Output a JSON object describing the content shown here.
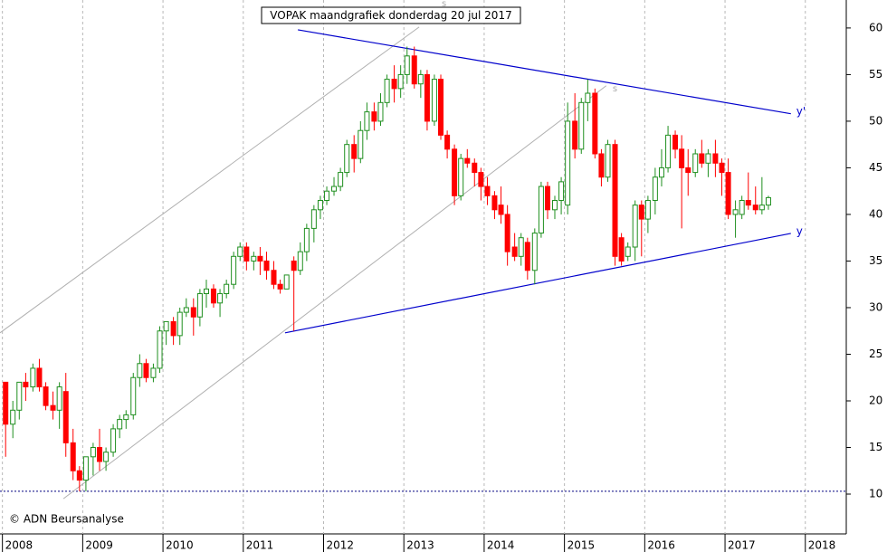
{
  "chart_data": {
    "type": "candlestick",
    "title": "VOPAK maandgrafiek donderdag 20 jul 2017",
    "copyright": "© ADN Beursanalyse",
    "x": [
      2008.04,
      2008.13,
      2008.21,
      2008.29,
      2008.38,
      2008.46,
      2008.54,
      2008.63,
      2008.71,
      2008.79,
      2008.88,
      2008.96,
      2009.04,
      2009.13,
      2009.21,
      2009.29,
      2009.38,
      2009.46,
      2009.54,
      2009.63,
      2009.71,
      2009.79,
      2009.88,
      2009.96,
      2010.04,
      2010.13,
      2010.21,
      2010.29,
      2010.38,
      2010.46,
      2010.54,
      2010.63,
      2010.71,
      2010.79,
      2010.88,
      2010.96,
      2011.04,
      2011.13,
      2011.21,
      2011.29,
      2011.38,
      2011.46,
      2011.54,
      2011.63,
      2011.71,
      2011.79,
      2011.88,
      2011.96,
      2012.04,
      2012.13,
      2012.21,
      2012.29,
      2012.38,
      2012.46,
      2012.54,
      2012.63,
      2012.71,
      2012.79,
      2012.88,
      2012.96,
      2013.04,
      2013.13,
      2013.21,
      2013.29,
      2013.38,
      2013.46,
      2013.54,
      2013.63,
      2013.71,
      2013.79,
      2013.88,
      2013.96,
      2014.04,
      2014.13,
      2014.21,
      2014.29,
      2014.38,
      2014.46,
      2014.54,
      2014.63,
      2014.71,
      2014.79,
      2014.88,
      2014.96,
      2015.04,
      2015.13,
      2015.21,
      2015.29,
      2015.38,
      2015.46,
      2015.54,
      2015.63,
      2015.71,
      2015.79,
      2015.88,
      2015.96,
      2016.04,
      2016.13,
      2016.21,
      2016.29,
      2016.38,
      2016.46,
      2016.54,
      2016.63,
      2016.71,
      2016.79,
      2016.88,
      2016.96,
      2017.04,
      2017.13,
      2017.21,
      2017.29,
      2017.38,
      2017.46,
      2017.54
    ],
    "open": [
      22,
      17.5,
      19,
      22,
      21.5,
      23.5,
      21.5,
      19.5,
      19,
      21,
      15.5,
      12.5,
      11.5,
      14,
      15,
      13.5,
      14.5,
      17,
      18,
      18.5,
      22.5,
      24,
      22.5,
      23.5,
      27.5,
      28.5,
      27,
      29.5,
      30,
      29,
      31.5,
      32,
      30.5,
      31.5,
      32.5,
      35.5,
      36.5,
      35,
      35.5,
      35,
      34,
      32.5,
      32,
      35,
      34,
      36,
      38.5,
      40.5,
      41.5,
      42.5,
      43,
      44.5,
      47.5,
      46,
      49,
      51,
      50,
      52,
      54.5,
      53.5,
      55,
      57,
      54,
      55,
      50,
      54.5,
      48.5,
      47,
      42,
      46,
      45.5,
      44.5,
      43,
      42,
      41,
      40,
      36.5,
      35.5,
      37,
      34,
      38,
      43,
      40.5,
      41.5,
      41,
      50,
      47,
      52,
      53,
      46.5,
      44,
      47.5,
      37.5,
      35.5,
      36.5,
      41,
      39.5,
      41.5,
      44,
      45,
      48.5,
      47,
      45,
      44.5,
      46.5,
      45.5,
      46.5,
      45.5,
      44.5,
      40,
      40,
      41.5,
      41,
      40.5,
      41
    ],
    "high": [
      22,
      20,
      22,
      23,
      24,
      24.5,
      22,
      21,
      22,
      23,
      17,
      13,
      14,
      15.5,
      17,
      15,
      17.5,
      18.5,
      19,
      23,
      25,
      24.5,
      24,
      28,
      28.5,
      29,
      30,
      31,
      31,
      32,
      33,
      32.5,
      32,
      33,
      36,
      37,
      37,
      36,
      36.5,
      36,
      35,
      33,
      33.5,
      35.5,
      37,
      39,
      41,
      42,
      43,
      44,
      45,
      48,
      48.5,
      50,
      52,
      52,
      53,
      55,
      56,
      56,
      58,
      58,
      55.5,
      55.5,
      55,
      55,
      49,
      47.5,
      46.5,
      47,
      46,
      45,
      44,
      42.5,
      43,
      41,
      38,
      38,
      37.5,
      38.5,
      43.5,
      43.5,
      42,
      44,
      52,
      53,
      52.5,
      54.5,
      53.5,
      47,
      48,
      48,
      38,
      37,
      41.5,
      41.5,
      42,
      45,
      47,
      49.5,
      49,
      48.5,
      47,
      47,
      48,
      47,
      48,
      46,
      46,
      41.5,
      42,
      44.5,
      43,
      44,
      42
    ],
    "low": [
      14,
      16,
      18,
      20,
      21,
      21,
      19,
      18,
      17,
      14,
      11.5,
      10.3,
      10.3,
      12,
      12.5,
      12.5,
      14,
      16,
      17,
      18,
      21.5,
      22,
      22,
      23,
      26,
      26,
      26,
      29,
      27,
      28,
      30,
      30,
      29,
      31,
      32,
      35,
      34,
      34,
      33.5,
      33,
      32,
      31.5,
      32,
      27.5,
      33.5,
      35,
      37,
      39.5,
      41,
      42,
      42.5,
      44,
      44.5,
      45.5,
      48,
      49,
      49.5,
      51.5,
      52,
      52.5,
      54,
      53.5,
      52.5,
      49,
      49.5,
      48,
      46,
      41,
      41.5,
      45,
      43,
      41.5,
      41,
      39.5,
      39,
      34.5,
      35,
      34.5,
      33,
      32.5,
      37.5,
      39.5,
      39.5,
      40,
      40,
      46,
      46.5,
      50,
      46,
      43,
      43.5,
      34.5,
      34.5,
      35,
      35,
      35.5,
      38,
      40,
      43,
      44.5,
      46,
      38.5,
      42,
      44,
      45,
      44,
      44,
      42,
      39.5,
      37.5,
      39.5,
      40.5,
      40,
      40,
      40.5
    ],
    "close": [
      17.5,
      19,
      22,
      21.5,
      23.5,
      21.5,
      19.5,
      19,
      21.5,
      15.5,
      12.5,
      11.5,
      14,
      15,
      13.5,
      14.5,
      17,
      18,
      18.5,
      22.5,
      24,
      22.5,
      23.5,
      27.5,
      28.5,
      27,
      29.5,
      30,
      29,
      31.5,
      32,
      30.5,
      31.5,
      32.5,
      35.5,
      36.5,
      35,
      35.5,
      35,
      34,
      32.5,
      32,
      33.5,
      34,
      36,
      38.5,
      40.5,
      41.5,
      42.5,
      43,
      44.5,
      47.5,
      46,
      49,
      51,
      50,
      52,
      54.5,
      53.5,
      55,
      57,
      54,
      55,
      50,
      54.5,
      48.5,
      47,
      42,
      46,
      45.5,
      44.5,
      43,
      42,
      40.5,
      40,
      36,
      35.5,
      37.5,
      34,
      38,
      43,
      40.5,
      41.5,
      43.5,
      50,
      47,
      52,
      53,
      46.5,
      44,
      47.5,
      35.5,
      35,
      36.5,
      41,
      39.5,
      41.5,
      44,
      45,
      48.5,
      47,
      45,
      44.5,
      46.5,
      45.5,
      46.5,
      45.5,
      44.5,
      40,
      40.5,
      41.5,
      41,
      40.5,
      41,
      41.8
    ],
    "up_color": "#1f8f1f",
    "down_color": "#ff0000",
    "xlim": [
      2007.97,
      2018.51
    ],
    "xticks": [
      2008,
      2009,
      2010,
      2011,
      2012,
      2013,
      2014,
      2015,
      2016,
      2017,
      2018
    ],
    "ylim": [
      5.73,
      63.0
    ],
    "yticks": [
      10,
      15,
      20,
      25,
      30,
      35,
      40,
      45,
      50,
      55,
      60
    ],
    "grid": true,
    "trendlines": [
      {
        "name": "y'",
        "color": "#0000cc",
        "x": [
          2011.68,
          2017.82
        ],
        "y": [
          59.8,
          50.8
        ]
      },
      {
        "name": "y",
        "color": "#0000cc",
        "x": [
          2011.52,
          2017.82
        ],
        "y": [
          27.3,
          37.96
        ]
      }
    ],
    "channels": [
      {
        "color": "#b0b0b0",
        "x": [
          2007.97,
          2013.19
        ],
        "y": [
          27.3,
          60.1
        ]
      },
      {
        "color": "#b0b0b0",
        "x": [
          2008.76,
          2015.52
        ],
        "y": [
          9.5,
          53.8
        ]
      }
    ],
    "annotations": [
      {
        "text": "s",
        "x": 2013.5,
        "y": 62.6
      },
      {
        "text": "s",
        "x": 2015.63,
        "y": 53.5
      }
    ],
    "hline": {
      "value": 10.3,
      "color": "#000080"
    }
  }
}
